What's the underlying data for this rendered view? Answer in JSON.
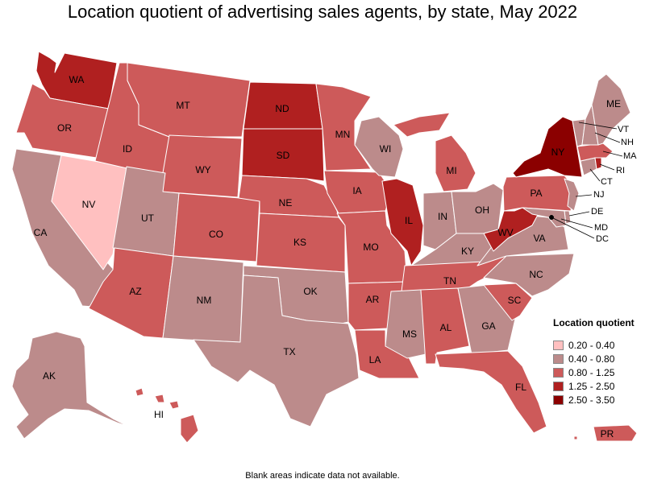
{
  "title": "Location quotient of advertising sales agents, by state, May 2022",
  "footnote": "Blank areas indicate data not available.",
  "legend": {
    "title": "Location quotient",
    "bins": [
      {
        "label": "0.20 - 0.40",
        "color": "#ffc0c0"
      },
      {
        "label": "0.40 - 0.80",
        "color": "#bc8b8b"
      },
      {
        "label": "0.80 - 1.25",
        "color": "#cd5a5a"
      },
      {
        "label": "1.25 - 2.50",
        "color": "#b02020"
      },
      {
        "label": "2.50 - 3.50",
        "color": "#8b0000"
      }
    ]
  },
  "states": {
    "WA": {
      "bin": 3
    },
    "OR": {
      "bin": 2
    },
    "CA": {
      "bin": 1
    },
    "NV": {
      "bin": 0
    },
    "ID": {
      "bin": 2
    },
    "MT": {
      "bin": 2
    },
    "WY": {
      "bin": 2
    },
    "UT": {
      "bin": 1
    },
    "AZ": {
      "bin": 2
    },
    "CO": {
      "bin": 2
    },
    "NM": {
      "bin": 1
    },
    "ND": {
      "bin": 3
    },
    "SD": {
      "bin": 3
    },
    "NE": {
      "bin": 2
    },
    "KS": {
      "bin": 2
    },
    "OK": {
      "bin": 1
    },
    "TX": {
      "bin": 1
    },
    "MN": {
      "bin": 2
    },
    "IA": {
      "bin": 2
    },
    "MO": {
      "bin": 2
    },
    "AR": {
      "bin": 2
    },
    "LA": {
      "bin": 2
    },
    "WI": {
      "bin": 1
    },
    "IL": {
      "bin": 3
    },
    "MI": {
      "bin": 2
    },
    "IN": {
      "bin": 1
    },
    "OH": {
      "bin": 1
    },
    "KY": {
      "bin": 1
    },
    "TN": {
      "bin": 2
    },
    "MS": {
      "bin": 1
    },
    "AL": {
      "bin": 2
    },
    "GA": {
      "bin": 1
    },
    "FL": {
      "bin": 2
    },
    "SC": {
      "bin": 2
    },
    "NC": {
      "bin": 1
    },
    "VA": {
      "bin": 1
    },
    "WV": {
      "bin": 3
    },
    "PA": {
      "bin": 2
    },
    "NY": {
      "bin": 4
    },
    "VT": {
      "bin": 1
    },
    "NH": {
      "bin": 1
    },
    "ME": {
      "bin": 1
    },
    "MA": {
      "bin": 2
    },
    "CT": {
      "bin": 1
    },
    "RI": {
      "bin": 3
    },
    "NJ": {
      "bin": 1
    },
    "DE": {
      "bin": 1
    },
    "MD": {
      "bin": 1
    },
    "DC": {
      "bin": 4
    },
    "AK": {
      "bin": 1
    },
    "HI": {
      "bin": 2
    },
    "PR": {
      "bin": 2
    }
  }
}
